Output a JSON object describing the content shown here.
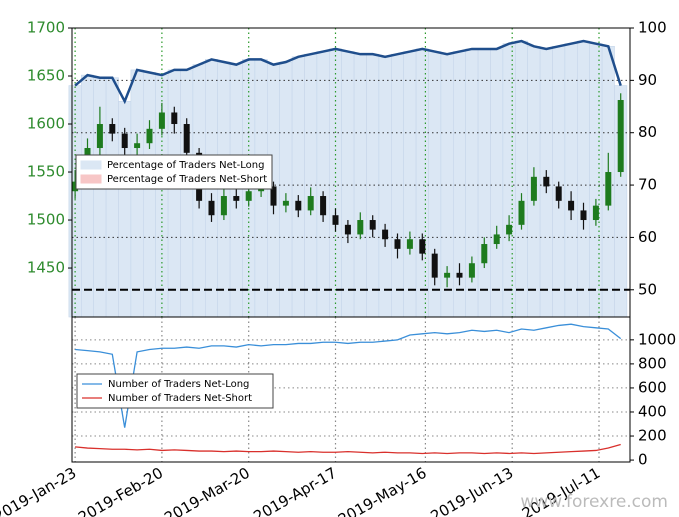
{
  "chart_data": [
    {
      "type": "candlestick",
      "x": [
        "2019-01-23",
        "2019-01-27",
        "2019-01-31",
        "2019-02-04",
        "2019-02-08",
        "2019-02-12",
        "2019-02-16",
        "2019-02-20",
        "2019-02-24",
        "2019-02-28",
        "2019-03-04",
        "2019-03-08",
        "2019-03-12",
        "2019-03-16",
        "2019-03-20",
        "2019-03-24",
        "2019-03-28",
        "2019-04-01",
        "2019-04-05",
        "2019-04-09",
        "2019-04-13",
        "2019-04-17",
        "2019-04-21",
        "2019-04-25",
        "2019-04-29",
        "2019-05-03",
        "2019-05-07",
        "2019-05-11",
        "2019-05-15",
        "2019-05-19",
        "2019-05-23",
        "2019-05-27",
        "2019-05-31",
        "2019-06-04",
        "2019-06-08",
        "2019-06-12",
        "2019-06-16",
        "2019-06-20",
        "2019-06-24",
        "2019-06-28",
        "2019-07-02",
        "2019-07-06",
        "2019-07-10",
        "2019-07-14",
        "2019-07-18"
      ],
      "open": [
        1530,
        1540,
        1575,
        1600,
        1590,
        1575,
        1580,
        1595,
        1612,
        1600,
        1570,
        1520,
        1505,
        1525,
        1520,
        1530,
        1535,
        1515,
        1520,
        1510,
        1525,
        1505,
        1495,
        1485,
        1500,
        1490,
        1480,
        1470,
        1480,
        1465,
        1440,
        1445,
        1440,
        1455,
        1475,
        1485,
        1495,
        1520,
        1545,
        1535,
        1520,
        1510,
        1500,
        1515,
        1550
      ],
      "high": [
        1552,
        1585,
        1618,
        1606,
        1596,
        1590,
        1604,
        1622,
        1618,
        1606,
        1575,
        1528,
        1534,
        1532,
        1540,
        1545,
        1540,
        1528,
        1526,
        1534,
        1530,
        1512,
        1500,
        1508,
        1505,
        1496,
        1486,
        1488,
        1486,
        1470,
        1452,
        1455,
        1462,
        1482,
        1494,
        1505,
        1528,
        1555,
        1552,
        1540,
        1530,
        1518,
        1522,
        1570,
        1632
      ],
      "low": [
        1522,
        1535,
        1568,
        1582,
        1568,
        1565,
        1574,
        1588,
        1590,
        1562,
        1512,
        1498,
        1500,
        1512,
        1514,
        1524,
        1506,
        1508,
        1503,
        1505,
        1498,
        1488,
        1476,
        1480,
        1482,
        1472,
        1460,
        1464,
        1458,
        1432,
        1430,
        1432,
        1435,
        1450,
        1470,
        1478,
        1490,
        1515,
        1528,
        1512,
        1500,
        1490,
        1494,
        1510,
        1545
      ],
      "close": [
        1540,
        1575,
        1600,
        1590,
        1575,
        1580,
        1595,
        1612,
        1600,
        1570,
        1520,
        1505,
        1525,
        1520,
        1530,
        1535,
        1515,
        1520,
        1510,
        1525,
        1505,
        1495,
        1485,
        1500,
        1490,
        1480,
        1470,
        1480,
        1465,
        1440,
        1445,
        1440,
        1455,
        1475,
        1485,
        1495,
        1520,
        1545,
        1535,
        1520,
        1510,
        1500,
        1515,
        1550,
        1625
      ],
      "up_color": "#1e7b1e",
      "down_color": "#111111",
      "xlim": [
        "2019-01-22",
        "2019-07-21"
      ],
      "xticks": [
        {
          "value": "2019-01-23",
          "label": "2019-Jan-23"
        },
        {
          "value": "2019-02-20",
          "label": "2019-Feb-20"
        },
        {
          "value": "2019-03-20",
          "label": "2019-Mar-20"
        },
        {
          "value": "2019-04-17",
          "label": "2019-Apr-17"
        },
        {
          "value": "2019-05-16",
          "label": "2019-May-16"
        },
        {
          "value": "2019-06-13",
          "label": "2019-Jun-13"
        },
        {
          "value": "2019-07-11",
          "label": "2019-Jul-11"
        }
      ],
      "ylim": [
        1399,
        1700
      ],
      "yticks": [
        1450,
        1500,
        1550,
        1600,
        1650,
        1700
      ],
      "y2lim": [
        44.8,
        100
      ],
      "y2ticks": [
        50,
        60,
        70,
        80,
        90,
        100
      ],
      "threshold": 50,
      "series": [
        {
          "name": "Percentage of Traders Net-Long",
          "color": "#1f4e8c",
          "fill": "#dbe7f4",
          "axis": "y2",
          "values": [
            89,
            91,
            90.5,
            90.5,
            86,
            92,
            91.5,
            91,
            92,
            92,
            93,
            94,
            93.5,
            93,
            94,
            94,
            93,
            93.5,
            94.5,
            95,
            95.5,
            96,
            95.5,
            95,
            95,
            94.5,
            95,
            95.5,
            96,
            95.5,
            95,
            95.5,
            96,
            96,
            96,
            97,
            97.5,
            96.5,
            96,
            96.5,
            97,
            97.5,
            97,
            96.5,
            89
          ]
        },
        {
          "name": "Percentage of Traders Net-Short",
          "fill": "#f7c6c6"
        }
      ]
    },
    {
      "type": "line",
      "ylim": [
        -16,
        1190
      ],
      "yticks": [
        0,
        200,
        400,
        600,
        800,
        1000
      ],
      "series": [
        {
          "name": "Number of Traders Net-Long",
          "color": "#3a8fd9",
          "values": [
            920,
            910,
            900,
            880,
            270,
            900,
            920,
            930,
            930,
            940,
            930,
            950,
            950,
            940,
            960,
            950,
            960,
            960,
            970,
            970,
            980,
            980,
            970,
            980,
            980,
            990,
            1000,
            1040,
            1050,
            1060,
            1050,
            1060,
            1080,
            1070,
            1080,
            1060,
            1090,
            1080,
            1100,
            1120,
            1130,
            1110,
            1100,
            1090,
            1010
          ]
        },
        {
          "name": "Number of Traders Net-Short",
          "color": "#d9302c",
          "values": [
            110,
            100,
            95,
            90,
            90,
            85,
            90,
            80,
            85,
            80,
            75,
            75,
            70,
            75,
            70,
            70,
            75,
            70,
            65,
            70,
            65,
            65,
            70,
            65,
            60,
            65,
            60,
            60,
            55,
            60,
            55,
            60,
            60,
            55,
            60,
            55,
            60,
            55,
            60,
            65,
            70,
            75,
            80,
            100,
            130
          ]
        }
      ]
    }
  ],
  "watermark": "www.forexre.com"
}
